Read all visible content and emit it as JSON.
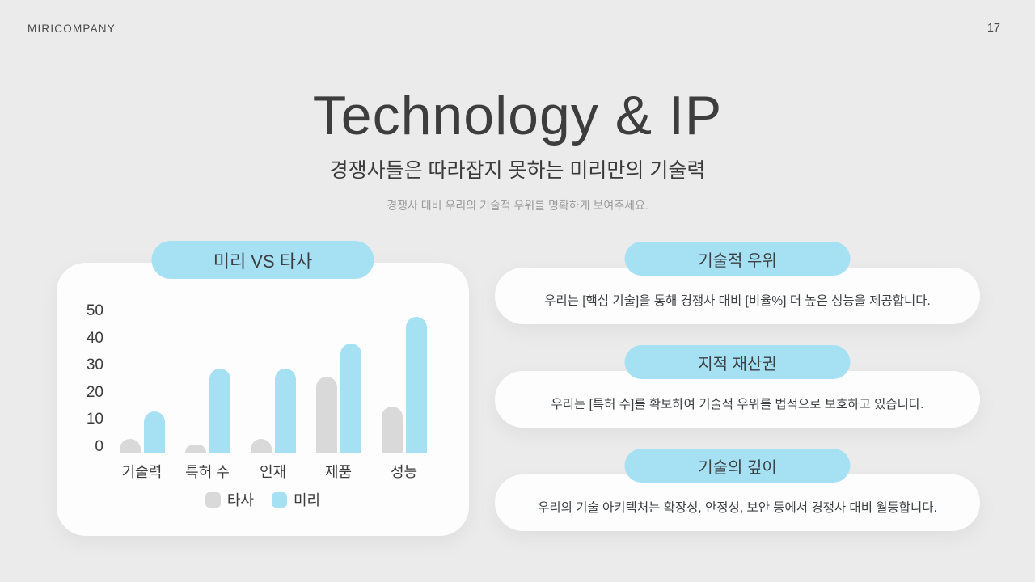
{
  "header": {
    "company": "MIRICOMPANY",
    "page_number": "17"
  },
  "title": "Technology & IP",
  "subtitle": "경쟁사들은 따라잡지 못하는 미리만의 기술력",
  "helper_text": "경쟁사 대비 우리의 기술적 우위를 명확하게 보여주세요.",
  "chart_card": {
    "pill_label": "미리 VS 타사"
  },
  "chart_data": {
    "type": "bar",
    "title": "미리 VS 타사",
    "categories": [
      "기술력",
      "특허 수",
      "인재",
      "제품",
      "성능"
    ],
    "series": [
      {
        "name": "타사",
        "color": "#d9d9d9",
        "values": [
          3,
          1,
          3,
          26,
          15
        ]
      },
      {
        "name": "미리",
        "color": "#a6e1f3",
        "values": [
          13,
          29,
          29,
          38,
          48
        ]
      }
    ],
    "ylabel": "",
    "xlabel": "",
    "ylim": [
      0,
      50
    ],
    "yticks": [
      0,
      10,
      20,
      30,
      40,
      50
    ],
    "grid": false,
    "legend_position": "bottom"
  },
  "info_cards": [
    {
      "pill_label": "기술적 우위",
      "body": "우리는 [핵심 기술]을 통해 경쟁사 대비 [비율%] 더 높은 성능을 제공합니다."
    },
    {
      "pill_label": "지적 재산권",
      "body": "우리는 [특허 수]를 확보하여 기술적 우위를 법적으로 보호하고 있습니다."
    },
    {
      "pill_label": "기술의 깊이",
      "body": "우리의 기술 아키텍처는 확장성, 안정성, 보안 등에서 경쟁사 대비 월등합니다."
    }
  ],
  "colors": {
    "background": "#ebebeb",
    "card": "#fdfdfd",
    "accent_blue": "#a6e1f3",
    "bar_gray": "#d9d9d9",
    "text_dark": "#3c4043",
    "text_muted": "#9b9b9b"
  }
}
